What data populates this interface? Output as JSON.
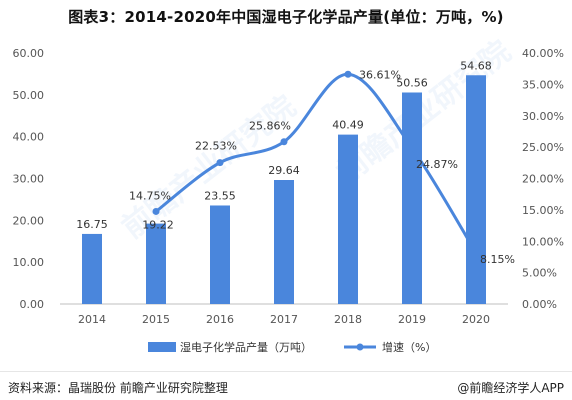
{
  "title": "图表3：2014-2020年中国湿电子化学品产量(单位：万吨，%)",
  "footer": {
    "source": "资料来源：晶瑞股份 前瞻产业研究院整理",
    "logo": "@前瞻经济学人APP"
  },
  "watermark": "前瞻产业研究院",
  "chart_data": {
    "type": "bar",
    "categories": [
      "2014",
      "2015",
      "2016",
      "2017",
      "2018",
      "2019",
      "2020"
    ],
    "series": [
      {
        "name": "湿电子化学品产量（万吨）",
        "type": "bar",
        "axis": "left",
        "values": [
          16.75,
          19.22,
          23.55,
          29.64,
          40.49,
          50.56,
          54.68
        ],
        "labels": [
          "16.75",
          "19.22",
          "23.55",
          "29.64",
          "40.49",
          "50.56",
          "54.68"
        ],
        "color": "#4a86dc"
      },
      {
        "name": "增速（%）",
        "type": "line",
        "axis": "right",
        "values": [
          null,
          14.75,
          22.53,
          25.86,
          36.61,
          24.87,
          8.15
        ],
        "labels": [
          "",
          "14.75%",
          "22.53%",
          "25.86%",
          "36.61%",
          "24.87%",
          "8.15%"
        ],
        "color": "#4a86dc"
      }
    ],
    "y_left": {
      "min": 0,
      "max": 60,
      "ticks": [
        "0.00",
        "10.00",
        "20.00",
        "30.00",
        "40.00",
        "50.00",
        "60.00"
      ]
    },
    "y_right": {
      "min": 0,
      "max": 40,
      "ticks": [
        "0.00%",
        "5.00%",
        "10.00%",
        "15.00%",
        "20.00%",
        "25.00%",
        "30.00%",
        "35.00%",
        "40.00%"
      ]
    },
    "grid": false,
    "legend_position": "bottom"
  }
}
